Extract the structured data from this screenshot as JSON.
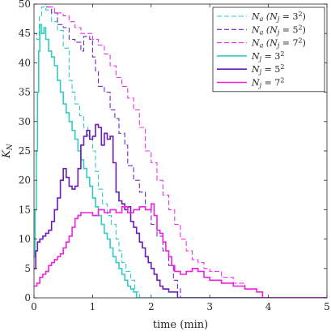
{
  "chart_data": {
    "type": "line",
    "title": "",
    "xlabel": "time (min)",
    "ylabel": "K_N",
    "ylabel_main": "K",
    "ylabel_sub": "N",
    "xlim": [
      0,
      5
    ],
    "ylim": [
      0,
      50
    ],
    "xticks": [
      0,
      1,
      2,
      3,
      4,
      5
    ],
    "yticks": [
      0,
      5,
      10,
      15,
      20,
      25,
      30,
      35,
      40,
      45,
      50
    ],
    "xtick_labels": [
      "0",
      "1",
      "2",
      "3",
      "4",
      "5"
    ],
    "ytick_labels": [
      "0",
      "5",
      "10",
      "15",
      "20",
      "25",
      "30",
      "35",
      "40",
      "45",
      "50"
    ],
    "grid": false,
    "legend_position": "top-right",
    "series": [
      {
        "name": "N_a (N_j = 3^2)",
        "legend": {
          "main": "N",
          "sub": "a",
          "paren": "(N",
          "paren_sub": "j",
          "eq": " = 3",
          "sup": "2",
          "close": ")"
        },
        "color": "#33ccc0",
        "dash": true,
        "points": [
          [
            0.0,
            45.0
          ],
          [
            0.05,
            44.0
          ],
          [
            0.09,
            48.0
          ],
          [
            0.13,
            49.5
          ],
          [
            0.2,
            49.0
          ],
          [
            0.3,
            47.0
          ],
          [
            0.4,
            45.5
          ],
          [
            0.5,
            42.5
          ],
          [
            0.6,
            37.0
          ],
          [
            0.65,
            35.0
          ],
          [
            0.7,
            33.0
          ],
          [
            0.78,
            31.0
          ],
          [
            0.85,
            29.0
          ],
          [
            0.92,
            27.5
          ],
          [
            1.0,
            25.0
          ],
          [
            1.05,
            21.5
          ],
          [
            1.1,
            18.5
          ],
          [
            1.17,
            16.0
          ],
          [
            1.25,
            14.0
          ],
          [
            1.32,
            12.5
          ],
          [
            1.4,
            10.0
          ],
          [
            1.45,
            8.0
          ],
          [
            1.5,
            6.0
          ],
          [
            1.57,
            4.5
          ],
          [
            1.65,
            3.0
          ],
          [
            1.72,
            1.0
          ],
          [
            1.8,
            0.0
          ],
          [
            5.0,
            0.0
          ]
        ]
      },
      {
        "name": "N_a (N_j = 5^2)",
        "legend": {
          "main": "N",
          "sub": "a",
          "paren": "(N",
          "paren_sub": "j",
          "eq": " = 5",
          "sup": "2",
          "close": ")"
        },
        "color": "#6a2bc7",
        "dash": true,
        "points": [
          [
            0.13,
            50.0
          ],
          [
            0.2,
            49.5
          ],
          [
            0.3,
            48.5
          ],
          [
            0.4,
            46.5
          ],
          [
            0.5,
            46.0
          ],
          [
            0.6,
            44.0
          ],
          [
            0.7,
            43.5
          ],
          [
            0.8,
            42.0
          ],
          [
            0.85,
            44.5
          ],
          [
            0.95,
            44.0
          ],
          [
            1.0,
            41.0
          ],
          [
            1.05,
            38.5
          ],
          [
            1.1,
            36.0
          ],
          [
            1.2,
            35.0
          ],
          [
            1.3,
            32.0
          ],
          [
            1.38,
            30.5
          ],
          [
            1.45,
            28.0
          ],
          [
            1.55,
            26.0
          ],
          [
            1.6,
            22.5
          ],
          [
            1.7,
            20.0
          ],
          [
            1.8,
            18.0
          ],
          [
            1.9,
            15.0
          ],
          [
            2.0,
            12.5
          ],
          [
            2.1,
            10.5
          ],
          [
            2.2,
            8.0
          ],
          [
            2.3,
            5.5
          ],
          [
            2.38,
            3.0
          ],
          [
            2.45,
            1.5
          ],
          [
            2.5,
            0.0
          ],
          [
            5.0,
            0.0
          ]
        ]
      },
      {
        "name": "N_a (N_j = 7^2)",
        "legend": {
          "main": "N",
          "sub": "a",
          "paren": "(N",
          "paren_sub": "j",
          "eq": " = 7",
          "sup": "2",
          "close": ")"
        },
        "color": "#ee33ee",
        "dash": true,
        "points": [
          [
            0.17,
            50.0
          ],
          [
            0.25,
            49.5
          ],
          [
            0.35,
            48.5
          ],
          [
            0.5,
            48.0
          ],
          [
            0.6,
            47.0
          ],
          [
            0.7,
            46.0
          ],
          [
            0.8,
            45.0
          ],
          [
            0.9,
            45.0
          ],
          [
            1.0,
            44.0
          ],
          [
            1.1,
            43.0
          ],
          [
            1.2,
            41.5
          ],
          [
            1.3,
            39.5
          ],
          [
            1.4,
            37.5
          ],
          [
            1.5,
            36.0
          ],
          [
            1.6,
            34.0
          ],
          [
            1.7,
            32.0
          ],
          [
            1.8,
            29.0
          ],
          [
            1.9,
            25.0
          ],
          [
            2.0,
            23.0
          ],
          [
            2.1,
            20.0
          ],
          [
            2.2,
            17.5
          ],
          [
            2.3,
            15.0
          ],
          [
            2.4,
            12.5
          ],
          [
            2.5,
            10.0
          ],
          [
            2.6,
            8.0
          ],
          [
            2.7,
            6.5
          ],
          [
            2.8,
            6.0
          ],
          [
            2.9,
            5.0
          ],
          [
            3.0,
            4.5
          ],
          [
            3.2,
            3.5
          ],
          [
            3.4,
            2.5
          ],
          [
            3.6,
            1.5
          ],
          [
            3.8,
            1.0
          ],
          [
            3.9,
            0.0
          ],
          [
            5.0,
            0.0
          ]
        ]
      },
      {
        "name": "N_j = 3^2",
        "legend": {
          "main": "N",
          "sub": "j",
          "paren": "",
          "paren_sub": "",
          "eq": " = 3",
          "sup": "2",
          "close": ""
        },
        "color": "#33ccc0",
        "dash": false,
        "points": [
          [
            0.0,
            7.0
          ],
          [
            0.02,
            15.0
          ],
          [
            0.04,
            25.0
          ],
          [
            0.06,
            35.0
          ],
          [
            0.08,
            42.0
          ],
          [
            0.1,
            46.5
          ],
          [
            0.13,
            45.0
          ],
          [
            0.17,
            46.0
          ],
          [
            0.2,
            44.0
          ],
          [
            0.25,
            42.0
          ],
          [
            0.3,
            41.0
          ],
          [
            0.35,
            39.5
          ],
          [
            0.4,
            37.0
          ],
          [
            0.45,
            35.0
          ],
          [
            0.5,
            33.0
          ],
          [
            0.55,
            31.5
          ],
          [
            0.6,
            30.0
          ],
          [
            0.65,
            28.5
          ],
          [
            0.7,
            27.0
          ],
          [
            0.75,
            25.0
          ],
          [
            0.8,
            23.5
          ],
          [
            0.85,
            22.0
          ],
          [
            0.9,
            20.5
          ],
          [
            0.95,
            19.0
          ],
          [
            1.0,
            17.0
          ],
          [
            1.05,
            15.5
          ],
          [
            1.1,
            14.0
          ],
          [
            1.15,
            12.5
          ],
          [
            1.2,
            11.0
          ],
          [
            1.25,
            10.0
          ],
          [
            1.3,
            8.5
          ],
          [
            1.35,
            7.0
          ],
          [
            1.4,
            6.0
          ],
          [
            1.45,
            5.0
          ],
          [
            1.5,
            4.0
          ],
          [
            1.55,
            3.0
          ],
          [
            1.6,
            2.0
          ],
          [
            1.65,
            1.5
          ],
          [
            1.7,
            1.0
          ],
          [
            1.75,
            0.0
          ],
          [
            5.0,
            0.0
          ]
        ]
      },
      {
        "name": "N_j = 5^2",
        "legend": {
          "main": "N",
          "sub": "j",
          "paren": "",
          "paren_sub": "",
          "eq": " = 5",
          "sup": "2",
          "close": ""
        },
        "color": "#6a1bb8",
        "dash": false,
        "points": [
          [
            0.0,
            5.0
          ],
          [
            0.03,
            8.0
          ],
          [
            0.06,
            9.5
          ],
          [
            0.1,
            10.0
          ],
          [
            0.15,
            10.5
          ],
          [
            0.2,
            11.0
          ],
          [
            0.25,
            11.5
          ],
          [
            0.3,
            13.0
          ],
          [
            0.35,
            15.0
          ],
          [
            0.4,
            17.0
          ],
          [
            0.45,
            20.0
          ],
          [
            0.5,
            22.0
          ],
          [
            0.55,
            20.5
          ],
          [
            0.6,
            19.0
          ],
          [
            0.65,
            18.5
          ],
          [
            0.7,
            19.0
          ],
          [
            0.75,
            22.0
          ],
          [
            0.8,
            26.0
          ],
          [
            0.85,
            27.5
          ],
          [
            0.9,
            28.5
          ],
          [
            0.95,
            27.0
          ],
          [
            1.0,
            27.5
          ],
          [
            1.05,
            29.5
          ],
          [
            1.1,
            29.0
          ],
          [
            1.15,
            26.0
          ],
          [
            1.2,
            28.0
          ],
          [
            1.25,
            27.0
          ],
          [
            1.3,
            27.5
          ],
          [
            1.35,
            23.0
          ],
          [
            1.4,
            18.0
          ],
          [
            1.45,
            16.5
          ],
          [
            1.5,
            16.0
          ],
          [
            1.55,
            15.0
          ],
          [
            1.6,
            15.5
          ],
          [
            1.65,
            13.0
          ],
          [
            1.7,
            12.0
          ],
          [
            1.75,
            11.0
          ],
          [
            1.8,
            9.5
          ],
          [
            1.85,
            8.5
          ],
          [
            1.9,
            7.0
          ],
          [
            1.95,
            6.0
          ],
          [
            2.0,
            5.0
          ],
          [
            2.05,
            4.0
          ],
          [
            2.1,
            3.0
          ],
          [
            2.15,
            2.0
          ],
          [
            2.2,
            1.5
          ],
          [
            2.3,
            1.0
          ],
          [
            2.45,
            0.0
          ],
          [
            5.0,
            0.0
          ]
        ]
      },
      {
        "name": "N_j = 7^2",
        "legend": {
          "main": "N",
          "sub": "j",
          "paren": "",
          "paren_sub": "",
          "eq": " = 7",
          "sup": "2",
          "close": ""
        },
        "color": "#ee22dd",
        "dash": false,
        "points": [
          [
            0.0,
            2.0
          ],
          [
            0.05,
            2.5
          ],
          [
            0.1,
            3.5
          ],
          [
            0.15,
            4.0
          ],
          [
            0.2,
            4.5
          ],
          [
            0.25,
            5.5
          ],
          [
            0.3,
            6.0
          ],
          [
            0.35,
            6.5
          ],
          [
            0.4,
            7.0
          ],
          [
            0.45,
            7.5
          ],
          [
            0.5,
            8.5
          ],
          [
            0.55,
            9.5
          ],
          [
            0.6,
            10.5
          ],
          [
            0.65,
            12.0
          ],
          [
            0.7,
            13.5
          ],
          [
            0.75,
            14.0
          ],
          [
            0.8,
            14.5
          ],
          [
            0.9,
            14.5
          ],
          [
            1.0,
            14.0
          ],
          [
            1.1,
            15.0
          ],
          [
            1.2,
            14.5
          ],
          [
            1.3,
            15.0
          ],
          [
            1.4,
            14.5
          ],
          [
            1.5,
            15.5
          ],
          [
            1.6,
            14.5
          ],
          [
            1.7,
            15.0
          ],
          [
            1.8,
            15.5
          ],
          [
            1.9,
            15.0
          ],
          [
            2.0,
            16.0
          ],
          [
            2.05,
            14.0
          ],
          [
            2.1,
            11.5
          ],
          [
            2.15,
            11.0
          ],
          [
            2.2,
            9.5
          ],
          [
            2.25,
            8.0
          ],
          [
            2.3,
            7.0
          ],
          [
            2.35,
            5.5
          ],
          [
            2.4,
            4.5
          ],
          [
            2.5,
            4.0
          ],
          [
            2.6,
            4.5
          ],
          [
            2.7,
            5.0
          ],
          [
            2.8,
            4.5
          ],
          [
            2.9,
            3.5
          ],
          [
            3.0,
            3.0
          ],
          [
            3.2,
            2.5
          ],
          [
            3.4,
            2.0
          ],
          [
            3.6,
            1.5
          ],
          [
            3.8,
            1.0
          ],
          [
            3.9,
            0.0
          ],
          [
            5.0,
            0.0
          ]
        ]
      }
    ]
  }
}
